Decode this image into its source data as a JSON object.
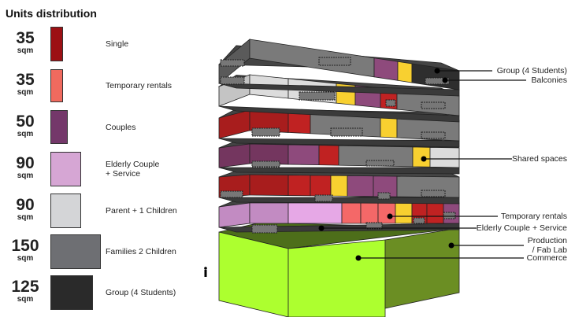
{
  "title": "Units distribution",
  "unit_label": "sqm",
  "legend": [
    {
      "id": "single",
      "size": "35",
      "label": "Single",
      "color": "#9c1014"
    },
    {
      "id": "temporary",
      "size": "35",
      "label": "Temporary rentals",
      "color": "#f06a5e"
    },
    {
      "id": "couples",
      "size": "50",
      "label": "Couples",
      "color": "#74386a"
    },
    {
      "id": "elderly",
      "size": "90",
      "label": "Elderly Couple\n+ Service",
      "color": "#d6a6d4"
    },
    {
      "id": "parent",
      "size": "90",
      "label": "Parent + 1 Children",
      "color": "#d4d5d7"
    },
    {
      "id": "families",
      "size": "150",
      "label": "Families 2 Children",
      "color": "#6e6f73"
    },
    {
      "id": "group",
      "size": "125",
      "label": "Group (4 Students)",
      "color": "#2a2a2a"
    }
  ],
  "callouts": [
    {
      "id": "group",
      "label": "Group (4 Students)"
    },
    {
      "id": "balconies",
      "label": "Balconies"
    },
    {
      "id": "shared",
      "label": "Shared spaces"
    },
    {
      "id": "temporary",
      "label": "Temporary rentals"
    },
    {
      "id": "elderly",
      "label": "Elderly Couple + Service"
    },
    {
      "id": "production",
      "label": "Production\n/ Fab Lab"
    },
    {
      "id": "commerce",
      "label": "Commerce"
    }
  ],
  "building_colors": {
    "group": "#2e2e2e",
    "families": "#7a7a7a",
    "families_dark": "#5a5a5a",
    "parent": "#dcdcdc",
    "parent_dark": "#c4c4c4",
    "couples": "#8e4a7c",
    "couples_dark": "#74365f",
    "single": "#a81d1d",
    "single_bright": "#c02222",
    "temporary": "#f46868",
    "shared": "#f8d030",
    "elderly": "#e6a8e6",
    "elderly_dark": "#c28bc2",
    "commerce": "#adff2f",
    "production": "#6b8e23",
    "ground_top": "#4d6e1a"
  },
  "floors": [
    [
      "families_dark",
      "families",
      "couples",
      "shared",
      "group"
    ],
    [
      "parent_dark",
      "parent",
      "parent",
      "shared",
      "couples",
      "single_bright",
      "families"
    ],
    [
      "single",
      "single",
      "single_bright",
      "families",
      "shared",
      "families"
    ],
    [
      "couples_dark",
      "couples_dark",
      "couples",
      "single_bright",
      "families",
      "shared",
      "parent"
    ],
    [
      "single",
      "single",
      "single_bright",
      "single_bright",
      "shared",
      "couples",
      "couples",
      "families"
    ],
    [
      "elderly_dark",
      "elderly_dark",
      "elderly",
      "temporary",
      "temporary",
      "temporary",
      "shared",
      "single_bright",
      "single_bright",
      "couples"
    ]
  ]
}
